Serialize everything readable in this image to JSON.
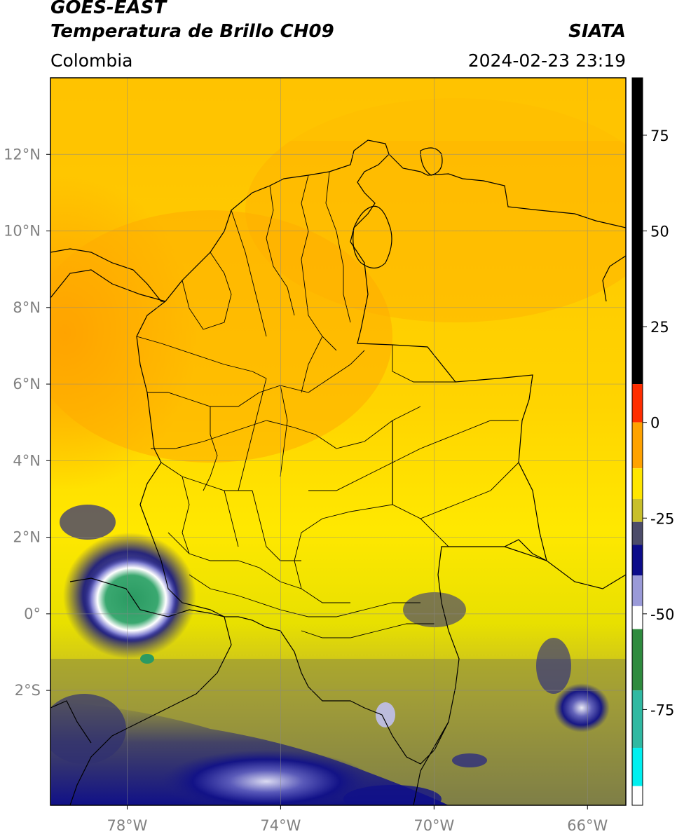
{
  "header": {
    "title": "GOES-EAST",
    "subtitle": "Temperatura de Brillo CH09",
    "organization": "SIATA",
    "region": "Colombia",
    "datetime": "2024-02-23 23:19"
  },
  "map": {
    "lon_range": [
      -80,
      -65
    ],
    "lat_range": [
      -5,
      14
    ],
    "lon_ticks": [
      "78°W",
      "74°W",
      "70°W",
      "66°W"
    ],
    "lon_tick_values": [
      -78,
      -74,
      -70,
      -66
    ],
    "lat_ticks": [
      "12°N",
      "10°N",
      "8°N",
      "6°N",
      "4°N",
      "2°N",
      "0°",
      "2°S"
    ],
    "lat_tick_values": [
      12,
      10,
      8,
      6,
      4,
      2,
      0,
      -2
    ],
    "grid": true
  },
  "colorbar": {
    "tick_labels": [
      "75",
      "50",
      "25",
      "0",
      "-25",
      "-50",
      "-75"
    ],
    "tick_values": [
      75,
      50,
      25,
      0,
      -25,
      -50,
      -75
    ],
    "range": [
      -100,
      90
    ],
    "segments": [
      {
        "from": 10,
        "to": 90,
        "color": "#000000"
      },
      {
        "from": 0,
        "to": 10,
        "color": "#ff2d00"
      },
      {
        "from": -12,
        "to": 0,
        "color": "#ffa200"
      },
      {
        "from": -20,
        "to": -12,
        "color": "#ffe600"
      },
      {
        "from": -26,
        "to": -20,
        "color": "#c8bf2a"
      },
      {
        "from": -32,
        "to": -26,
        "color": "#4c4c6a"
      },
      {
        "from": -40,
        "to": -32,
        "color": "#0c0c8a"
      },
      {
        "from": -48,
        "to": -40,
        "color": "#9a9ad8"
      },
      {
        "from": -54,
        "to": -48,
        "color": "#ffffff"
      },
      {
        "from": -70,
        "to": -54,
        "color": "#2e8b3e"
      },
      {
        "from": -85,
        "to": -70,
        "color": "#30b9a2"
      },
      {
        "from": -95,
        "to": -85,
        "color": "#00f0f0"
      },
      {
        "from": -100,
        "to": -95,
        "color": "#ffffff"
      }
    ]
  },
  "colors": {
    "warm_ocean": "#ff9e00",
    "land_orange": "#ffb400",
    "land_yellow": "#ffe600",
    "olive": "#b8b030",
    "cold_blue": "#101088",
    "cloud_white": "#e8e8f8",
    "cloud_green": "#2e9a5e"
  }
}
